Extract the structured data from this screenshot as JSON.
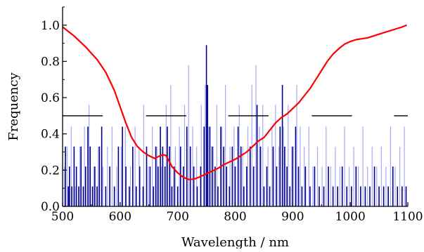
{
  "chart_data": {
    "type": "bar",
    "title": "",
    "xlabel": "Wavelength / nm",
    "ylabel": "Frequency",
    "xlim": [
      500,
      1100
    ],
    "ylim": [
      0,
      1.1
    ],
    "x_ticks": [
      500,
      600,
      700,
      800,
      900,
      1000,
      1100
    ],
    "y_ticks": [
      0.0,
      0.2,
      0.4,
      0.6,
      0.8,
      1.0
    ],
    "x_tick_labels": [
      "500",
      "600",
      "700",
      "800",
      "900",
      "1000",
      "1100"
    ],
    "y_tick_labels": [
      "0.0",
      "0.2",
      "0.4",
      "0.6",
      "0.8",
      "1.0"
    ],
    "grid": false,
    "legend": "none",
    "colors": {
      "dark_bars": "#00008b",
      "light_bars": "#a9a9f5",
      "curve": "#ff0000",
      "segments": "#000000"
    },
    "bars": [
      {
        "x": 505,
        "y": 0.33
      },
      {
        "x": 510,
        "y": 0.11
      },
      {
        "x": 512,
        "y": 0.22
      },
      {
        "x": 516,
        "y": 0.11
      },
      {
        "x": 520,
        "y": 0.33
      },
      {
        "x": 524,
        "y": 0.22
      },
      {
        "x": 528,
        "y": 0.11
      },
      {
        "x": 532,
        "y": 0.33
      },
      {
        "x": 536,
        "y": 0.11
      },
      {
        "x": 540,
        "y": 0.22
      },
      {
        "x": 544,
        "y": 0.44
      },
      {
        "x": 548,
        "y": 0.33
      },
      {
        "x": 552,
        "y": 0.11
      },
      {
        "x": 556,
        "y": 0.22
      },
      {
        "x": 560,
        "y": 0.11
      },
      {
        "x": 564,
        "y": 0.33
      },
      {
        "x": 568,
        "y": 0.44
      },
      {
        "x": 575,
        "y": 0.11
      },
      {
        "x": 582,
        "y": 0.22
      },
      {
        "x": 590,
        "y": 0.11
      },
      {
        "x": 597,
        "y": 0.33
      },
      {
        "x": 604,
        "y": 0.44
      },
      {
        "x": 610,
        "y": 0.22
      },
      {
        "x": 616,
        "y": 0.11
      },
      {
        "x": 622,
        "y": 0.33
      },
      {
        "x": 628,
        "y": 0.11
      },
      {
        "x": 634,
        "y": 0.22
      },
      {
        "x": 640,
        "y": 0.11
      },
      {
        "x": 646,
        "y": 0.33
      },
      {
        "x": 652,
        "y": 0.22
      },
      {
        "x": 658,
        "y": 0.11
      },
      {
        "x": 662,
        "y": 0.33
      },
      {
        "x": 666,
        "y": 0.22
      },
      {
        "x": 670,
        "y": 0.44
      },
      {
        "x": 674,
        "y": 0.33
      },
      {
        "x": 678,
        "y": 0.22
      },
      {
        "x": 682,
        "y": 0.44
      },
      {
        "x": 686,
        "y": 0.33
      },
      {
        "x": 690,
        "y": 0.11
      },
      {
        "x": 694,
        "y": 0.22
      },
      {
        "x": 700,
        "y": 0.11
      },
      {
        "x": 705,
        "y": 0.33
      },
      {
        "x": 710,
        "y": 0.22
      },
      {
        "x": 716,
        "y": 0.44
      },
      {
        "x": 722,
        "y": 0.33
      },
      {
        "x": 728,
        "y": 0.22
      },
      {
        "x": 734,
        "y": 0.11
      },
      {
        "x": 740,
        "y": 0.22
      },
      {
        "x": 746,
        "y": 0.44
      },
      {
        "x": 750,
        "y": 0.89
      },
      {
        "x": 752,
        "y": 0.67
      },
      {
        "x": 756,
        "y": 0.44
      },
      {
        "x": 760,
        "y": 0.33
      },
      {
        "x": 765,
        "y": 0.22
      },
      {
        "x": 770,
        "y": 0.11
      },
      {
        "x": 775,
        "y": 0.44
      },
      {
        "x": 780,
        "y": 0.33
      },
      {
        "x": 785,
        "y": 0.22
      },
      {
        "x": 790,
        "y": 0.11
      },
      {
        "x": 795,
        "y": 0.33
      },
      {
        "x": 800,
        "y": 0.22
      },
      {
        "x": 805,
        "y": 0.44
      },
      {
        "x": 810,
        "y": 0.33
      },
      {
        "x": 815,
        "y": 0.11
      },
      {
        "x": 820,
        "y": 0.22
      },
      {
        "x": 826,
        "y": 0.33
      },
      {
        "x": 832,
        "y": 0.22
      },
      {
        "x": 838,
        "y": 0.56
      },
      {
        "x": 844,
        "y": 0.33
      },
      {
        "x": 850,
        "y": 0.11
      },
      {
        "x": 855,
        "y": 0.22
      },
      {
        "x": 860,
        "y": 0.11
      },
      {
        "x": 866,
        "y": 0.33
      },
      {
        "x": 872,
        "y": 0.22
      },
      {
        "x": 878,
        "y": 0.44
      },
      {
        "x": 882,
        "y": 0.67
      },
      {
        "x": 886,
        "y": 0.33
      },
      {
        "x": 890,
        "y": 0.22
      },
      {
        "x": 895,
        "y": 0.11
      },
      {
        "x": 900,
        "y": 0.33
      },
      {
        "x": 905,
        "y": 0.44
      },
      {
        "x": 910,
        "y": 0.22
      },
      {
        "x": 916,
        "y": 0.11
      },
      {
        "x": 922,
        "y": 0.22
      },
      {
        "x": 930,
        "y": 0.11
      },
      {
        "x": 938,
        "y": 0.22
      },
      {
        "x": 946,
        "y": 0.11
      },
      {
        "x": 954,
        "y": 0.11
      },
      {
        "x": 962,
        "y": 0.22
      },
      {
        "x": 970,
        "y": 0.11
      },
      {
        "x": 978,
        "y": 0.11
      },
      {
        "x": 986,
        "y": 0.22
      },
      {
        "x": 994,
        "y": 0.11
      },
      {
        "x": 1002,
        "y": 0.11
      },
      {
        "x": 1010,
        "y": 0.22
      },
      {
        "x": 1018,
        "y": 0.11
      },
      {
        "x": 1026,
        "y": 0.11
      },
      {
        "x": 1034,
        "y": 0.11
      },
      {
        "x": 1042,
        "y": 0.22
      },
      {
        "x": 1050,
        "y": 0.11
      },
      {
        "x": 1058,
        "y": 0.11
      },
      {
        "x": 1066,
        "y": 0.11
      },
      {
        "x": 1074,
        "y": 0.22
      },
      {
        "x": 1082,
        "y": 0.11
      },
      {
        "x": 1090,
        "y": 0.11
      },
      {
        "x": 1097,
        "y": 0.11
      }
    ],
    "light_bars": [
      {
        "x": 503,
        "y": 0.22
      },
      {
        "x": 508,
        "y": 0.33
      },
      {
        "x": 515,
        "y": 0.44
      },
      {
        "x": 522,
        "y": 0.11
      },
      {
        "x": 530,
        "y": 0.33
      },
      {
        "x": 538,
        "y": 0.44
      },
      {
        "x": 546,
        "y": 0.56
      },
      {
        "x": 554,
        "y": 0.22
      },
      {
        "x": 562,
        "y": 0.33
      },
      {
        "x": 570,
        "y": 0.22
      },
      {
        "x": 578,
        "y": 0.33
      },
      {
        "x": 586,
        "y": 0.44
      },
      {
        "x": 594,
        "y": 0.22
      },
      {
        "x": 602,
        "y": 0.33
      },
      {
        "x": 609,
        "y": 0.44
      },
      {
        "x": 618,
        "y": 0.22
      },
      {
        "x": 626,
        "y": 0.44
      },
      {
        "x": 633,
        "y": 0.33
      },
      {
        "x": 641,
        "y": 0.56
      },
      {
        "x": 649,
        "y": 0.22
      },
      {
        "x": 656,
        "y": 0.44
      },
      {
        "x": 664,
        "y": 0.33
      },
      {
        "x": 672,
        "y": 0.22
      },
      {
        "x": 680,
        "y": 0.56
      },
      {
        "x": 688,
        "y": 0.67
      },
      {
        "x": 696,
        "y": 0.33
      },
      {
        "x": 703,
        "y": 0.44
      },
      {
        "x": 712,
        "y": 0.56
      },
      {
        "x": 719,
        "y": 0.78
      },
      {
        "x": 726,
        "y": 0.44
      },
      {
        "x": 733,
        "y": 0.33
      },
      {
        "x": 741,
        "y": 0.56
      },
      {
        "x": 748,
        "y": 0.67
      },
      {
        "x": 754,
        "y": 0.44
      },
      {
        "x": 762,
        "y": 0.33
      },
      {
        "x": 768,
        "y": 0.56
      },
      {
        "x": 777,
        "y": 0.44
      },
      {
        "x": 783,
        "y": 0.67
      },
      {
        "x": 791,
        "y": 0.33
      },
      {
        "x": 798,
        "y": 0.44
      },
      {
        "x": 807,
        "y": 0.56
      },
      {
        "x": 813,
        "y": 0.33
      },
      {
        "x": 822,
        "y": 0.44
      },
      {
        "x": 829,
        "y": 0.67
      },
      {
        "x": 836,
        "y": 0.78
      },
      {
        "x": 842,
        "y": 0.44
      },
      {
        "x": 848,
        "y": 0.56
      },
      {
        "x": 857,
        "y": 0.33
      },
      {
        "x": 864,
        "y": 0.44
      },
      {
        "x": 870,
        "y": 0.56
      },
      {
        "x": 876,
        "y": 0.33
      },
      {
        "x": 884,
        "y": 0.44
      },
      {
        "x": 892,
        "y": 0.56
      },
      {
        "x": 898,
        "y": 0.33
      },
      {
        "x": 907,
        "y": 0.67
      },
      {
        "x": 913,
        "y": 0.44
      },
      {
        "x": 920,
        "y": 0.33
      },
      {
        "x": 928,
        "y": 0.44
      },
      {
        "x": 935,
        "y": 0.22
      },
      {
        "x": 943,
        "y": 0.33
      },
      {
        "x": 951,
        "y": 0.22
      },
      {
        "x": 958,
        "y": 0.44
      },
      {
        "x": 966,
        "y": 0.22
      },
      {
        "x": 974,
        "y": 0.33
      },
      {
        "x": 982,
        "y": 0.22
      },
      {
        "x": 990,
        "y": 0.44
      },
      {
        "x": 998,
        "y": 0.22
      },
      {
        "x": 1006,
        "y": 0.33
      },
      {
        "x": 1014,
        "y": 0.22
      },
      {
        "x": 1022,
        "y": 0.44
      },
      {
        "x": 1030,
        "y": 0.22
      },
      {
        "x": 1038,
        "y": 0.33
      },
      {
        "x": 1046,
        "y": 0.22
      },
      {
        "x": 1054,
        "y": 0.33
      },
      {
        "x": 1062,
        "y": 0.22
      },
      {
        "x": 1070,
        "y": 0.44
      },
      {
        "x": 1078,
        "y": 0.22
      },
      {
        "x": 1086,
        "y": 0.33
      },
      {
        "x": 1094,
        "y": 0.44
      }
    ],
    "curve": [
      {
        "x": 500,
        "y": 0.99
      },
      {
        "x": 520,
        "y": 0.94
      },
      {
        "x": 540,
        "y": 0.88
      },
      {
        "x": 560,
        "y": 0.81
      },
      {
        "x": 575,
        "y": 0.74
      },
      {
        "x": 590,
        "y": 0.64
      },
      {
        "x": 600,
        "y": 0.55
      },
      {
        "x": 610,
        "y": 0.46
      },
      {
        "x": 620,
        "y": 0.38
      },
      {
        "x": 630,
        "y": 0.33
      },
      {
        "x": 640,
        "y": 0.3
      },
      {
        "x": 650,
        "y": 0.28
      },
      {
        "x": 660,
        "y": 0.265
      },
      {
        "x": 670,
        "y": 0.28
      },
      {
        "x": 675,
        "y": 0.285
      },
      {
        "x": 680,
        "y": 0.28
      },
      {
        "x": 685,
        "y": 0.25
      },
      {
        "x": 690,
        "y": 0.22
      },
      {
        "x": 700,
        "y": 0.185
      },
      {
        "x": 710,
        "y": 0.16
      },
      {
        "x": 720,
        "y": 0.148
      },
      {
        "x": 730,
        "y": 0.152
      },
      {
        "x": 740,
        "y": 0.165
      },
      {
        "x": 750,
        "y": 0.18
      },
      {
        "x": 760,
        "y": 0.195
      },
      {
        "x": 770,
        "y": 0.21
      },
      {
        "x": 780,
        "y": 0.23
      },
      {
        "x": 790,
        "y": 0.245
      },
      {
        "x": 800,
        "y": 0.26
      },
      {
        "x": 810,
        "y": 0.28
      },
      {
        "x": 820,
        "y": 0.3
      },
      {
        "x": 830,
        "y": 0.33
      },
      {
        "x": 840,
        "y": 0.36
      },
      {
        "x": 850,
        "y": 0.38
      },
      {
        "x": 860,
        "y": 0.42
      },
      {
        "x": 870,
        "y": 0.46
      },
      {
        "x": 880,
        "y": 0.49
      },
      {
        "x": 890,
        "y": 0.51
      },
      {
        "x": 900,
        "y": 0.54
      },
      {
        "x": 910,
        "y": 0.57
      },
      {
        "x": 920,
        "y": 0.61
      },
      {
        "x": 930,
        "y": 0.65
      },
      {
        "x": 940,
        "y": 0.7
      },
      {
        "x": 950,
        "y": 0.75
      },
      {
        "x": 960,
        "y": 0.8
      },
      {
        "x": 970,
        "y": 0.84
      },
      {
        "x": 980,
        "y": 0.87
      },
      {
        "x": 990,
        "y": 0.895
      },
      {
        "x": 1000,
        "y": 0.91
      },
      {
        "x": 1010,
        "y": 0.92
      },
      {
        "x": 1020,
        "y": 0.925
      },
      {
        "x": 1030,
        "y": 0.93
      },
      {
        "x": 1040,
        "y": 0.94
      },
      {
        "x": 1050,
        "y": 0.95
      },
      {
        "x": 1060,
        "y": 0.96
      },
      {
        "x": 1070,
        "y": 0.97
      },
      {
        "x": 1080,
        "y": 0.98
      },
      {
        "x": 1090,
        "y": 0.99
      },
      {
        "x": 1098,
        "y": 1.0
      }
    ],
    "segments": [
      {
        "x1": 500,
        "x2": 570,
        "y": 0.5
      },
      {
        "x1": 645,
        "x2": 715,
        "y": 0.5
      },
      {
        "x1": 788,
        "x2": 858,
        "y": 0.5
      },
      {
        "x1": 933,
        "x2": 1003,
        "y": 0.5
      },
      {
        "x1": 1076,
        "x2": 1100,
        "y": 0.5
      }
    ]
  }
}
